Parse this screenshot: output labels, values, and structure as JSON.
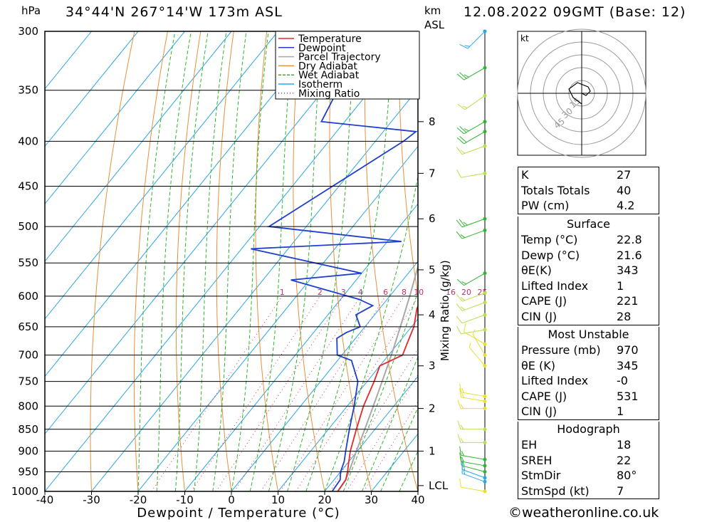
{
  "header": {
    "location": "34°44'N  267°14'W  173m  ASL",
    "datetime": "12.08.2022  09GMT  (Base: 12)",
    "pressure_unit": "hPa",
    "height_unit": "km",
    "height_ref": "ASL"
  },
  "footer": {
    "credit": "©weatheronline.co.uk"
  },
  "chart_data": {
    "type": "line",
    "subtype": "skew-T log-P sounding",
    "xlabel": "Dewpoint / Temperature (°C)",
    "ylabel": "hPa",
    "mixing_ratio_label": "Mixing Ratio (g/kg)",
    "xlim": [
      -40,
      40
    ],
    "ylim": [
      1000,
      300
    ],
    "x_ticks": [
      "-40",
      "-30",
      "-20",
      "-10",
      "0",
      "10",
      "20",
      "30",
      "40"
    ],
    "pressure_ticks": [
      "300",
      "350",
      "400",
      "450",
      "500",
      "550",
      "600",
      "650",
      "700",
      "750",
      "800",
      "850",
      "900",
      "950",
      "1000"
    ],
    "km_ticks": [
      {
        "label": "8",
        "p": 380
      },
      {
        "label": "7",
        "p": 435
      },
      {
        "label": "6",
        "p": 490
      },
      {
        "label": "5",
        "p": 560
      },
      {
        "label": "4",
        "p": 630
      },
      {
        "label": "3",
        "p": 720
      },
      {
        "label": "2",
        "p": 805
      },
      {
        "label": "1",
        "p": 900
      },
      {
        "label": "LCL",
        "p": 985
      }
    ],
    "mixing_ratio_values": [
      "1",
      "2",
      "3",
      "4",
      "6",
      "8",
      "10",
      "16",
      "20",
      "25"
    ],
    "legend": [
      "Temperature",
      "Dewpoint",
      "Parcel Trajectory",
      "Dry Adiabat",
      "Wet Adiabat",
      "Isotherm",
      "Mixing Ratio"
    ],
    "legend_position": "top-right",
    "colors": {
      "temperature": "#e8262a",
      "dewpoint": "#1e3fcf",
      "parcel": "#a8a8a8",
      "dry_adiabat": "#e8903a",
      "wet_adiabat": "#2fb52f",
      "isotherm": "#2aa6e8",
      "mixing_ratio": "#c8306e"
    },
    "series": [
      {
        "name": "Temperature",
        "points": [
          [
            1000,
            22.8
          ],
          [
            970,
            22.5
          ],
          [
            950,
            21.5
          ],
          [
            925,
            20
          ],
          [
            900,
            18.5
          ],
          [
            850,
            16
          ],
          [
            800,
            13.5
          ],
          [
            750,
            11.5
          ],
          [
            720,
            10
          ],
          [
            710,
            11.5
          ],
          [
            700,
            13
          ],
          [
            680,
            12
          ],
          [
            650,
            10.5
          ],
          [
            620,
            8
          ],
          [
            600,
            7
          ],
          [
            580,
            6
          ],
          [
            560,
            4
          ],
          [
            540,
            2
          ],
          [
            525,
            1
          ],
          [
            500,
            -1
          ],
          [
            480,
            -3
          ],
          [
            450,
            -7
          ],
          [
            420,
            -11
          ],
          [
            400,
            -14
          ],
          [
            385,
            -17
          ],
          [
            378,
            -16
          ],
          [
            360,
            -18
          ],
          [
            350,
            -19
          ],
          [
            300,
            -24
          ]
        ]
      },
      {
        "name": "Dewpoint",
        "points": [
          [
            1000,
            21.6
          ],
          [
            970,
            21.3
          ],
          [
            950,
            20
          ],
          [
            925,
            19
          ],
          [
            900,
            17.5
          ],
          [
            850,
            14.5
          ],
          [
            800,
            11.5
          ],
          [
            750,
            8
          ],
          [
            710,
            3
          ],
          [
            700,
            -1
          ],
          [
            670,
            -4
          ],
          [
            660,
            -3
          ],
          [
            650,
            -1
          ],
          [
            630,
            -4
          ],
          [
            615,
            -2
          ],
          [
            605,
            -6
          ],
          [
            575,
            -24
          ],
          [
            565,
            -10
          ],
          [
            530,
            -38
          ],
          [
            520,
            -7
          ],
          [
            500,
            -38
          ],
          [
            400,
            -24
          ],
          [
            390,
            -23
          ],
          [
            380,
            -45
          ],
          [
            350,
            -47
          ],
          [
            300,
            -48
          ]
        ]
      },
      {
        "name": "Parcel Trajectory",
        "points": [
          [
            1000,
            22.8
          ],
          [
            970,
            22.5
          ],
          [
            950,
            21.8
          ],
          [
            900,
            19.8
          ],
          [
            850,
            17.8
          ],
          [
            800,
            15.6
          ],
          [
            750,
            13.2
          ],
          [
            700,
            10.6
          ],
          [
            650,
            7.6
          ],
          [
            600,
            4.3
          ],
          [
            550,
            0.5
          ],
          [
            500,
            -4
          ],
          [
            450,
            -9
          ],
          [
            400,
            -15
          ],
          [
            350,
            -22
          ],
          [
            300,
            -30
          ]
        ]
      }
    ]
  },
  "hodograph": {
    "unit": "kt",
    "ring_labels": [
      "15",
      "30",
      "45"
    ],
    "trace": [
      [
        0,
        0
      ],
      [
        2,
        -1
      ],
      [
        4,
        1
      ],
      [
        3,
        3
      ],
      [
        -2,
        5
      ],
      [
        -6,
        2
      ],
      [
        -4,
        -2
      ],
      [
        0,
        -5
      ]
    ]
  },
  "wind_barbs": [
    {
      "p": 300,
      "color": "#2aa6e8",
      "dir": 225,
      "kt": 15
    },
    {
      "p": 330,
      "color": "#2fb52f",
      "dir": 240,
      "kt": 25
    },
    {
      "p": 355,
      "color": "#b8e04a",
      "dir": 235,
      "kt": 15
    },
    {
      "p": 380,
      "color": "#2fb52f",
      "dir": 240,
      "kt": 25
    },
    {
      "p": 390,
      "color": "#2fb52f",
      "dir": 240,
      "kt": 20
    },
    {
      "p": 405,
      "color": "#b8e04a",
      "dir": 250,
      "kt": 15
    },
    {
      "p": 435,
      "color": "#b8e04a",
      "dir": 260,
      "kt": 10
    },
    {
      "p": 490,
      "color": "#2fb52f",
      "dir": 250,
      "kt": 25
    },
    {
      "p": 505,
      "color": "#2fb52f",
      "dir": 250,
      "kt": 15
    },
    {
      "p": 565,
      "color": "#2fb52f",
      "dir": 240,
      "kt": 15
    },
    {
      "p": 595,
      "color": "#b8e04a",
      "dir": 250,
      "kt": 15
    },
    {
      "p": 610,
      "color": "#b8e04a",
      "dir": 250,
      "kt": 15
    },
    {
      "p": 630,
      "color": "#b8e04a",
      "dir": 250,
      "kt": 10
    },
    {
      "p": 655,
      "color": "#b8e04a",
      "dir": 260,
      "kt": 10
    },
    {
      "p": 680,
      "color": "#e8e02a",
      "dir": 300,
      "kt": 10
    },
    {
      "p": 700,
      "color": "#e8e02a",
      "dir": 330,
      "kt": 5
    },
    {
      "p": 720,
      "color": "#e8e02a",
      "dir": 320,
      "kt": 5
    },
    {
      "p": 780,
      "color": "#e8e02a",
      "dir": 280,
      "kt": 15
    },
    {
      "p": 790,
      "color": "#e8e02a",
      "dir": 280,
      "kt": 15
    },
    {
      "p": 805,
      "color": "#e8e02a",
      "dir": 270,
      "kt": 15
    },
    {
      "p": 850,
      "color": "#b8e04a",
      "dir": 270,
      "kt": 15
    },
    {
      "p": 880,
      "color": "#b8e04a",
      "dir": 270,
      "kt": 15
    },
    {
      "p": 920,
      "color": "#2fb52f",
      "dir": 280,
      "kt": 15
    },
    {
      "p": 935,
      "color": "#2fb52f",
      "dir": 280,
      "kt": 15
    },
    {
      "p": 950,
      "color": "#2fb52f",
      "dir": 285,
      "kt": 15
    },
    {
      "p": 965,
      "color": "#2aa6e8",
      "dir": 290,
      "kt": 15
    },
    {
      "p": 975,
      "color": "#2aa6e8",
      "dir": 290,
      "kt": 15
    },
    {
      "p": 1000,
      "color": "#e8e02a",
      "dir": 280,
      "kt": 10
    }
  ],
  "indices": {
    "general": [
      {
        "label": "K",
        "value": "27"
      },
      {
        "label": "Totals Totals",
        "value": "40"
      },
      {
        "label": "PW (cm)",
        "value": "4.2"
      }
    ],
    "surface": {
      "title": "Surface",
      "rows": [
        {
          "label": "Temp (°C)",
          "value": "22.8"
        },
        {
          "label": "Dewp (°C)",
          "value": "21.6"
        },
        {
          "label": "θE(K)",
          "value": "343"
        },
        {
          "label": "Lifted Index",
          "value": "1"
        },
        {
          "label": "CAPE (J)",
          "value": "221"
        },
        {
          "label": "CIN (J)",
          "value": "28"
        }
      ]
    },
    "most_unstable": {
      "title": "Most Unstable",
      "rows": [
        {
          "label": "Pressure (mb)",
          "value": "970"
        },
        {
          "label": "θE (K)",
          "value": "345"
        },
        {
          "label": "Lifted Index",
          "value": "-0"
        },
        {
          "label": "CAPE (J)",
          "value": "531"
        },
        {
          "label": "CIN (J)",
          "value": "1"
        }
      ]
    },
    "hodograph": {
      "title": "Hodograph",
      "rows": [
        {
          "label": "EH",
          "value": "18"
        },
        {
          "label": "SREH",
          "value": "22"
        },
        {
          "label": "StmDir",
          "value": "80°"
        },
        {
          "label": "StmSpd (kt)",
          "value": "7"
        }
      ]
    }
  }
}
